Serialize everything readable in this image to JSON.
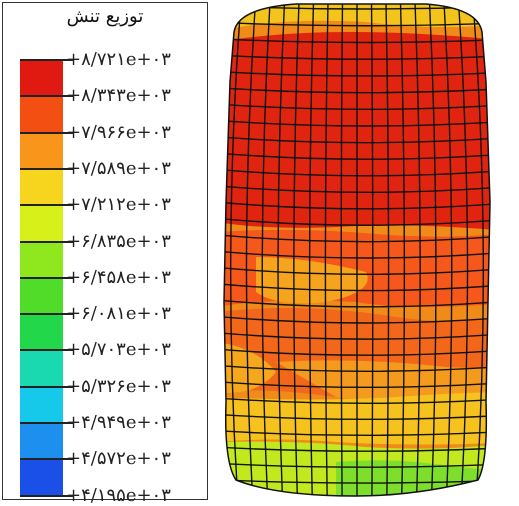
{
  "legend": {
    "title": "توزیع تنش",
    "labels": [
      "+۸/۷۲۱e+۰۳",
      "+۸/۳۴۳e+۰۳",
      "+۷/۹۶۶e+۰۳",
      "+۷/۵۸۹e+۰۳",
      "+۷/۲۱۲e+۰۳",
      "+۶/۸۳۵e+۰۳",
      "+۶/۴۵۸e+۰۳",
      "+۶/۰۸۱e+۰۳",
      "+۵/۷۰۳e+۰۳",
      "+۵/۳۲۶e+۰۳",
      "+۴/۹۴۹e+۰۳",
      "+۴/۵۷۲e+۰۳",
      "+۴/۱۹۵e+۰۳"
    ],
    "colors": [
      "#e01a10",
      "#f44f12",
      "#f9951a",
      "#f7d51e",
      "#d8f01a",
      "#8fe81e",
      "#52dc2a",
      "#22d84a",
      "#1ad8b0",
      "#16c8ea",
      "#1c8fef",
      "#1a50e8"
    ]
  }
}
